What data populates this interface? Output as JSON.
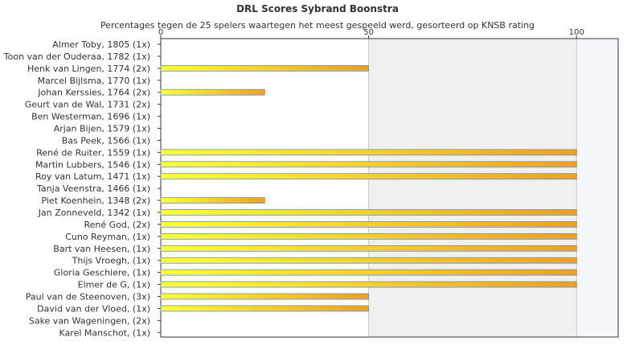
{
  "chart_data": {
    "type": "bar",
    "orientation": "horizontal",
    "title": "DRL Scores Sybrand Boonstra",
    "subtitle": "Percentages tegen de 25 spelers waartegen het meest gespeeld werd, gesorteerd op KNSB rating",
    "xlim": [
      0,
      110
    ],
    "x_ticks": [
      "0",
      "50",
      "100"
    ],
    "x_tick_values": [
      0,
      50,
      100
    ],
    "tick_placement": "top",
    "shaded_bands": [
      [
        50,
        100
      ]
    ],
    "grid": false,
    "categories": [
      "Almer Toby, 1805 (1x)",
      "Toon van der Ouderaa, 1782 (1x)",
      "Henk van Lingen, 1774 (2x)",
      "Marcel Bijlsma, 1770 (1x)",
      "Johan Kerssies, 1764 (2x)",
      "Geurt van de Wal, 1731 (2x)",
      "Ben Westerman, 1696 (1x)",
      "Arjan Bijen, 1579 (1x)",
      "Bas Peek, 1566 (1x)",
      "René de Ruiter, 1559 (1x)",
      "Martin Lubbers, 1546 (1x)",
      "Roy van Latum, 1471 (1x)",
      "Tanja Veenstra, 1466 (1x)",
      "Piet Koenhein, 1348 (2x)",
      "Jan Zonneveld, 1342 (1x)",
      "René God,  (2x)",
      "Cuno Reyman,  (1x)",
      "Bart van Heesen,  (1x)",
      "Thijs Vroegh,  (1x)",
      "Gloria Geschiere,  (1x)",
      "Elmer de G,  (1x)",
      "Paul van de Steenoven,  (3x)",
      "David van der Vloed,  (1x)",
      "Sake van Wageningen,  (2x)",
      "Karel Manschot,  (1x)"
    ],
    "values": [
      0,
      0,
      50,
      0,
      25,
      0,
      0,
      0,
      0,
      100,
      100,
      100,
      0,
      25,
      100,
      100,
      100,
      100,
      100,
      100,
      100,
      50,
      50,
      0,
      0
    ],
    "colors": {
      "bar_start": "#ffff33",
      "bar_end": "#f0a020",
      "bar_stroke": "#6a8fc0",
      "band": "#f0f0f0",
      "band_edge": "#f6f7fa",
      "axis": "#333333",
      "gridline": "#c8c8c8"
    }
  }
}
